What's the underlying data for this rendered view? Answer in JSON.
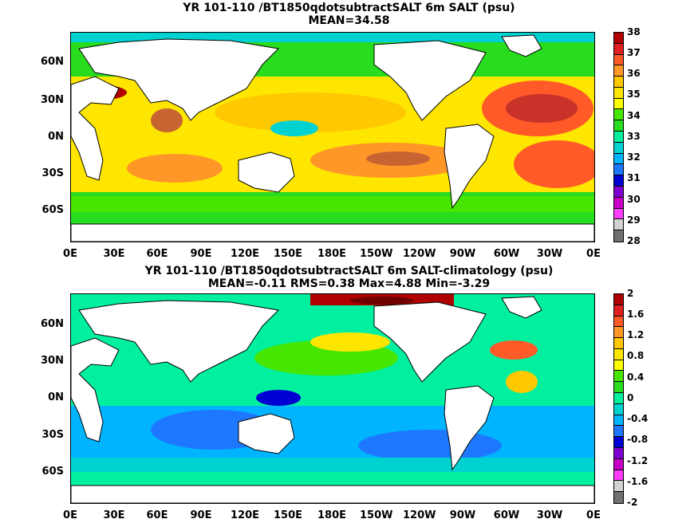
{
  "panels": [
    {
      "title_line1": "YR 101-110 /BT1850qdotsubtractSALT 6m SALT (psu)",
      "title_line2": "MEAN=34.58",
      "lat_labels": [
        "60N",
        "30N",
        "0N",
        "30S",
        "60S"
      ],
      "lon_labels": [
        "0E",
        "30E",
        "60E",
        "90E",
        "120E",
        "150E",
        "180E",
        "150W",
        "120W",
        "90W",
        "60W",
        "30W",
        "0E"
      ],
      "colorbar_labels": [
        "38",
        "37",
        "36",
        "35",
        "34",
        "33",
        "32",
        "31",
        "30",
        "29",
        "28"
      ],
      "colorbar_colors": [
        "#b00000",
        "#e02020",
        "#ff5a28",
        "#ff9628",
        "#ffc800",
        "#ffe600",
        "#ffff00",
        "#46e600",
        "#28dc1e",
        "#00f0a0",
        "#00d2d2",
        "#00b4ff",
        "#1e78ff",
        "#0000d2",
        "#8000d2",
        "#c800c8",
        "#ff3cff",
        "#d2d2d2",
        "#707070"
      ]
    },
    {
      "title_line1": "YR 101-110 /BT1850qdotsubtractSALT 6m SALT-climatology (psu)",
      "title_line2": "MEAN=-0.11   RMS=0.38   Max=4.88   Min=-3.29",
      "lat_labels": [
        "60N",
        "30N",
        "0N",
        "30S",
        "60S"
      ],
      "lon_labels": [
        "0E",
        "30E",
        "60E",
        "90E",
        "120E",
        "150E",
        "180E",
        "150W",
        "120W",
        "90W",
        "60W",
        "30W",
        "0E"
      ],
      "colorbar_labels": [
        "2",
        "1.6",
        "1.2",
        "0.8",
        "0.4",
        "0",
        "-0.4",
        "-0.8",
        "-1.2",
        "-1.6",
        "-2"
      ],
      "colorbar_colors": [
        "#b00000",
        "#e02020",
        "#ff5a28",
        "#ff9628",
        "#ffc800",
        "#ffe600",
        "#ffff00",
        "#46e600",
        "#28dc1e",
        "#00f0a0",
        "#00d2d2",
        "#00b4ff",
        "#1e78ff",
        "#0000d2",
        "#8000d2",
        "#c800c8",
        "#ff3cff",
        "#d2d2d2",
        "#707070"
      ]
    }
  ],
  "map_colors": {
    "land": "#ffffff",
    "coast": "#000000"
  }
}
